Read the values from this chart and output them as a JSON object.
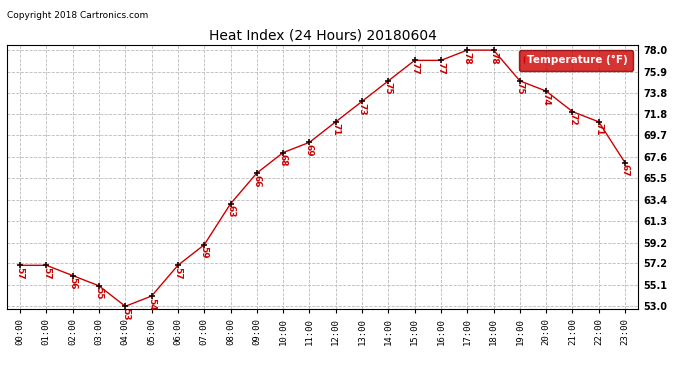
{
  "title": "Heat Index (24 Hours) 20180604",
  "copyright": "Copyright 2018 Cartronics.com",
  "legend_label": "Temperature (°F)",
  "hours": [
    0,
    1,
    2,
    3,
    4,
    5,
    6,
    7,
    8,
    9,
    10,
    11,
    12,
    13,
    14,
    15,
    16,
    17,
    18,
    19,
    20,
    21,
    22,
    23
  ],
  "hour_labels": [
    "00:00",
    "01:00",
    "02:00",
    "03:00",
    "04:00",
    "05:00",
    "06:00",
    "07:00",
    "08:00",
    "09:00",
    "10:00",
    "11:00",
    "12:00",
    "13:00",
    "14:00",
    "15:00",
    "16:00",
    "17:00",
    "18:00",
    "19:00",
    "20:00",
    "21:00",
    "22:00",
    "23:00"
  ],
  "values": [
    57,
    57,
    56,
    55,
    53,
    54,
    57,
    59,
    63,
    66,
    68,
    69,
    71,
    73,
    75,
    77,
    77,
    78,
    78,
    75,
    74,
    72,
    71,
    67
  ],
  "ylim_min": 53.0,
  "ylim_max": 78.0,
  "yticks": [
    53.0,
    55.1,
    57.2,
    59.2,
    61.3,
    63.4,
    65.5,
    67.6,
    69.7,
    71.8,
    73.8,
    75.9,
    78.0
  ],
  "line_color": "#cc0000",
  "marker_color": "#330000",
  "label_color": "#cc0000",
  "bg_color": "#ffffff",
  "grid_color": "#bbbbbb",
  "legend_bg": "#cc0000",
  "legend_text_color": "#ffffff",
  "copyright_color": "#000000",
  "title_color": "#000000"
}
